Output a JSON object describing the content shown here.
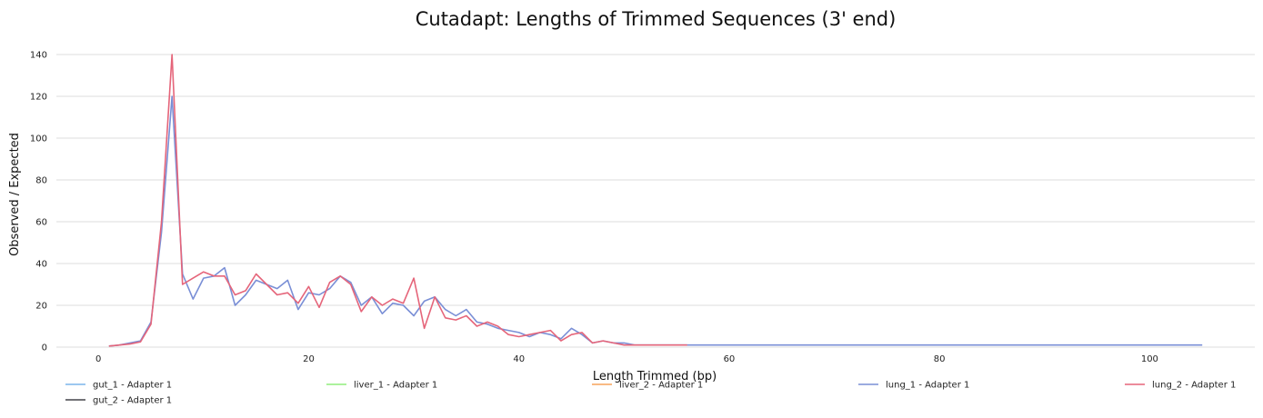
{
  "chart_data": {
    "type": "line",
    "title": "Cutadapt: Lengths of Trimmed Sequences (3' end)",
    "xlabel": "Length Trimmed (bp)",
    "ylabel": "Observed / Expected",
    "xlim": [
      -4,
      110
    ],
    "ylim": [
      0,
      140
    ],
    "x_ticks": [
      0,
      20,
      40,
      60,
      80,
      100
    ],
    "y_ticks": [
      0,
      20,
      40,
      60,
      80,
      100,
      120,
      140
    ],
    "grid": true,
    "legend_position": "bottom",
    "series": [
      {
        "name": "gut_1 - Adapter 1",
        "color": "#7cb5ec",
        "points": []
      },
      {
        "name": "liver_1 - Adapter 1",
        "color": "#90ed7d",
        "points": []
      },
      {
        "name": "liver_2 - Adapter 1",
        "color": "#f7a35c",
        "points": []
      },
      {
        "name": "lung_1 - Adapter 1",
        "color": "#7a8fd6",
        "points": [
          [
            1,
            0.5
          ],
          [
            2,
            1
          ],
          [
            3,
            2
          ],
          [
            4,
            3
          ],
          [
            5,
            12
          ],
          [
            6,
            55
          ],
          [
            7,
            120
          ],
          [
            8,
            35
          ],
          [
            9,
            23
          ],
          [
            10,
            33
          ],
          [
            11,
            34
          ],
          [
            12,
            38
          ],
          [
            13,
            20
          ],
          [
            14,
            25
          ],
          [
            15,
            32
          ],
          [
            16,
            30
          ],
          [
            17,
            28
          ],
          [
            18,
            32
          ],
          [
            19,
            18
          ],
          [
            20,
            26
          ],
          [
            21,
            25
          ],
          [
            22,
            28
          ],
          [
            23,
            34
          ],
          [
            24,
            31
          ],
          [
            25,
            20
          ],
          [
            26,
            24
          ],
          [
            27,
            16
          ],
          [
            28,
            21
          ],
          [
            29,
            20
          ],
          [
            30,
            15
          ],
          [
            31,
            22
          ],
          [
            32,
            24
          ],
          [
            33,
            18
          ],
          [
            34,
            15
          ],
          [
            35,
            18
          ],
          [
            36,
            12
          ],
          [
            37,
            11
          ],
          [
            38,
            9
          ],
          [
            39,
            8
          ],
          [
            40,
            7
          ],
          [
            41,
            5
          ],
          [
            42,
            7
          ],
          [
            43,
            6
          ],
          [
            44,
            4
          ],
          [
            45,
            9
          ],
          [
            46,
            6
          ],
          [
            47,
            2
          ],
          [
            48,
            3
          ],
          [
            49,
            2
          ],
          [
            50,
            2
          ],
          [
            51,
            1
          ],
          [
            52,
            1
          ],
          [
            53,
            1
          ],
          [
            54,
            1
          ],
          [
            55,
            1
          ],
          [
            56,
            1
          ],
          [
            60,
            1
          ],
          [
            70,
            1
          ],
          [
            80,
            1
          ],
          [
            90,
            1
          ],
          [
            100,
            1
          ],
          [
            105,
            1
          ]
        ]
      },
      {
        "name": "lung_2 - Adapter 1",
        "color": "#e5657a",
        "points": [
          [
            1,
            0.5
          ],
          [
            2,
            1
          ],
          [
            3,
            1.5
          ],
          [
            4,
            2.5
          ],
          [
            5,
            11
          ],
          [
            6,
            60
          ],
          [
            7,
            140
          ],
          [
            8,
            30
          ],
          [
            9,
            33
          ],
          [
            10,
            36
          ],
          [
            11,
            34
          ],
          [
            12,
            34
          ],
          [
            13,
            25
          ],
          [
            14,
            27
          ],
          [
            15,
            35
          ],
          [
            16,
            30
          ],
          [
            17,
            25
          ],
          [
            18,
            26
          ],
          [
            19,
            21
          ],
          [
            20,
            29
          ],
          [
            21,
            19
          ],
          [
            22,
            31
          ],
          [
            23,
            34
          ],
          [
            24,
            30
          ],
          [
            25,
            17
          ],
          [
            26,
            24
          ],
          [
            27,
            20
          ],
          [
            28,
            23
          ],
          [
            29,
            21
          ],
          [
            30,
            33
          ],
          [
            31,
            9
          ],
          [
            32,
            24
          ],
          [
            33,
            14
          ],
          [
            34,
            13
          ],
          [
            35,
            15
          ],
          [
            36,
            10
          ],
          [
            37,
            12
          ],
          [
            38,
            10
          ],
          [
            39,
            6
          ],
          [
            40,
            5
          ],
          [
            41,
            6
          ],
          [
            42,
            7
          ],
          [
            43,
            8
          ],
          [
            44,
            3
          ],
          [
            45,
            6
          ],
          [
            46,
            7
          ],
          [
            47,
            2
          ],
          [
            48,
            3
          ],
          [
            49,
            2
          ],
          [
            50,
            1
          ],
          [
            51,
            1
          ],
          [
            52,
            1
          ],
          [
            53,
            1
          ],
          [
            54,
            1
          ],
          [
            55,
            1
          ],
          [
            56,
            1
          ]
        ]
      },
      {
        "name": "gut_2 - Adapter 1",
        "color": "#434348",
        "points": []
      }
    ]
  }
}
